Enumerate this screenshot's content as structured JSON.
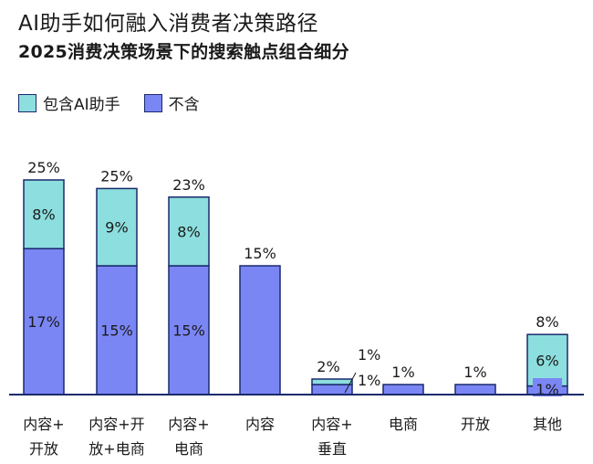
{
  "title": "AI助手如何融入消费者决策路径",
  "subtitle": "2025消费决策场景下的搜索触点组合细分",
  "colors": {
    "with_ai": "#8ddede",
    "without_ai": "#7b86f5",
    "outline": "#1a2a6c",
    "baseline": "#1a2a6c"
  },
  "chart_data": {
    "type": "bar",
    "stacked": true,
    "legend_position": "top-left",
    "grid": false,
    "ylim": [
      0,
      25
    ],
    "legend": [
      "包含AI助手",
      "不含"
    ],
    "categories": [
      [
        "内容+",
        "开放"
      ],
      [
        "内容+开",
        "放+电商"
      ],
      [
        "内容+",
        "电商"
      ],
      [
        "内容"
      ],
      [
        "内容+",
        "垂直"
      ],
      [
        "电商"
      ],
      [
        "开放"
      ],
      [
        "其他"
      ]
    ],
    "series": [
      {
        "name": "不含",
        "values": [
          17,
          15,
          15,
          15,
          1,
          1,
          1,
          1
        ],
        "labels": [
          "17%",
          "15%",
          "15%",
          "",
          "1%",
          "",
          "",
          "1%"
        ]
      },
      {
        "name": "包含AI助手",
        "values": [
          8,
          9,
          8,
          0,
          1,
          0,
          0,
          6
        ],
        "labels": [
          "8%",
          "9%",
          "8%",
          "",
          "1%",
          "",
          "",
          "6%"
        ]
      }
    ],
    "totals": [
      "25%",
      "25%",
      "23%",
      "15%",
      "2%",
      "1%",
      "1%",
      "8%"
    ]
  }
}
